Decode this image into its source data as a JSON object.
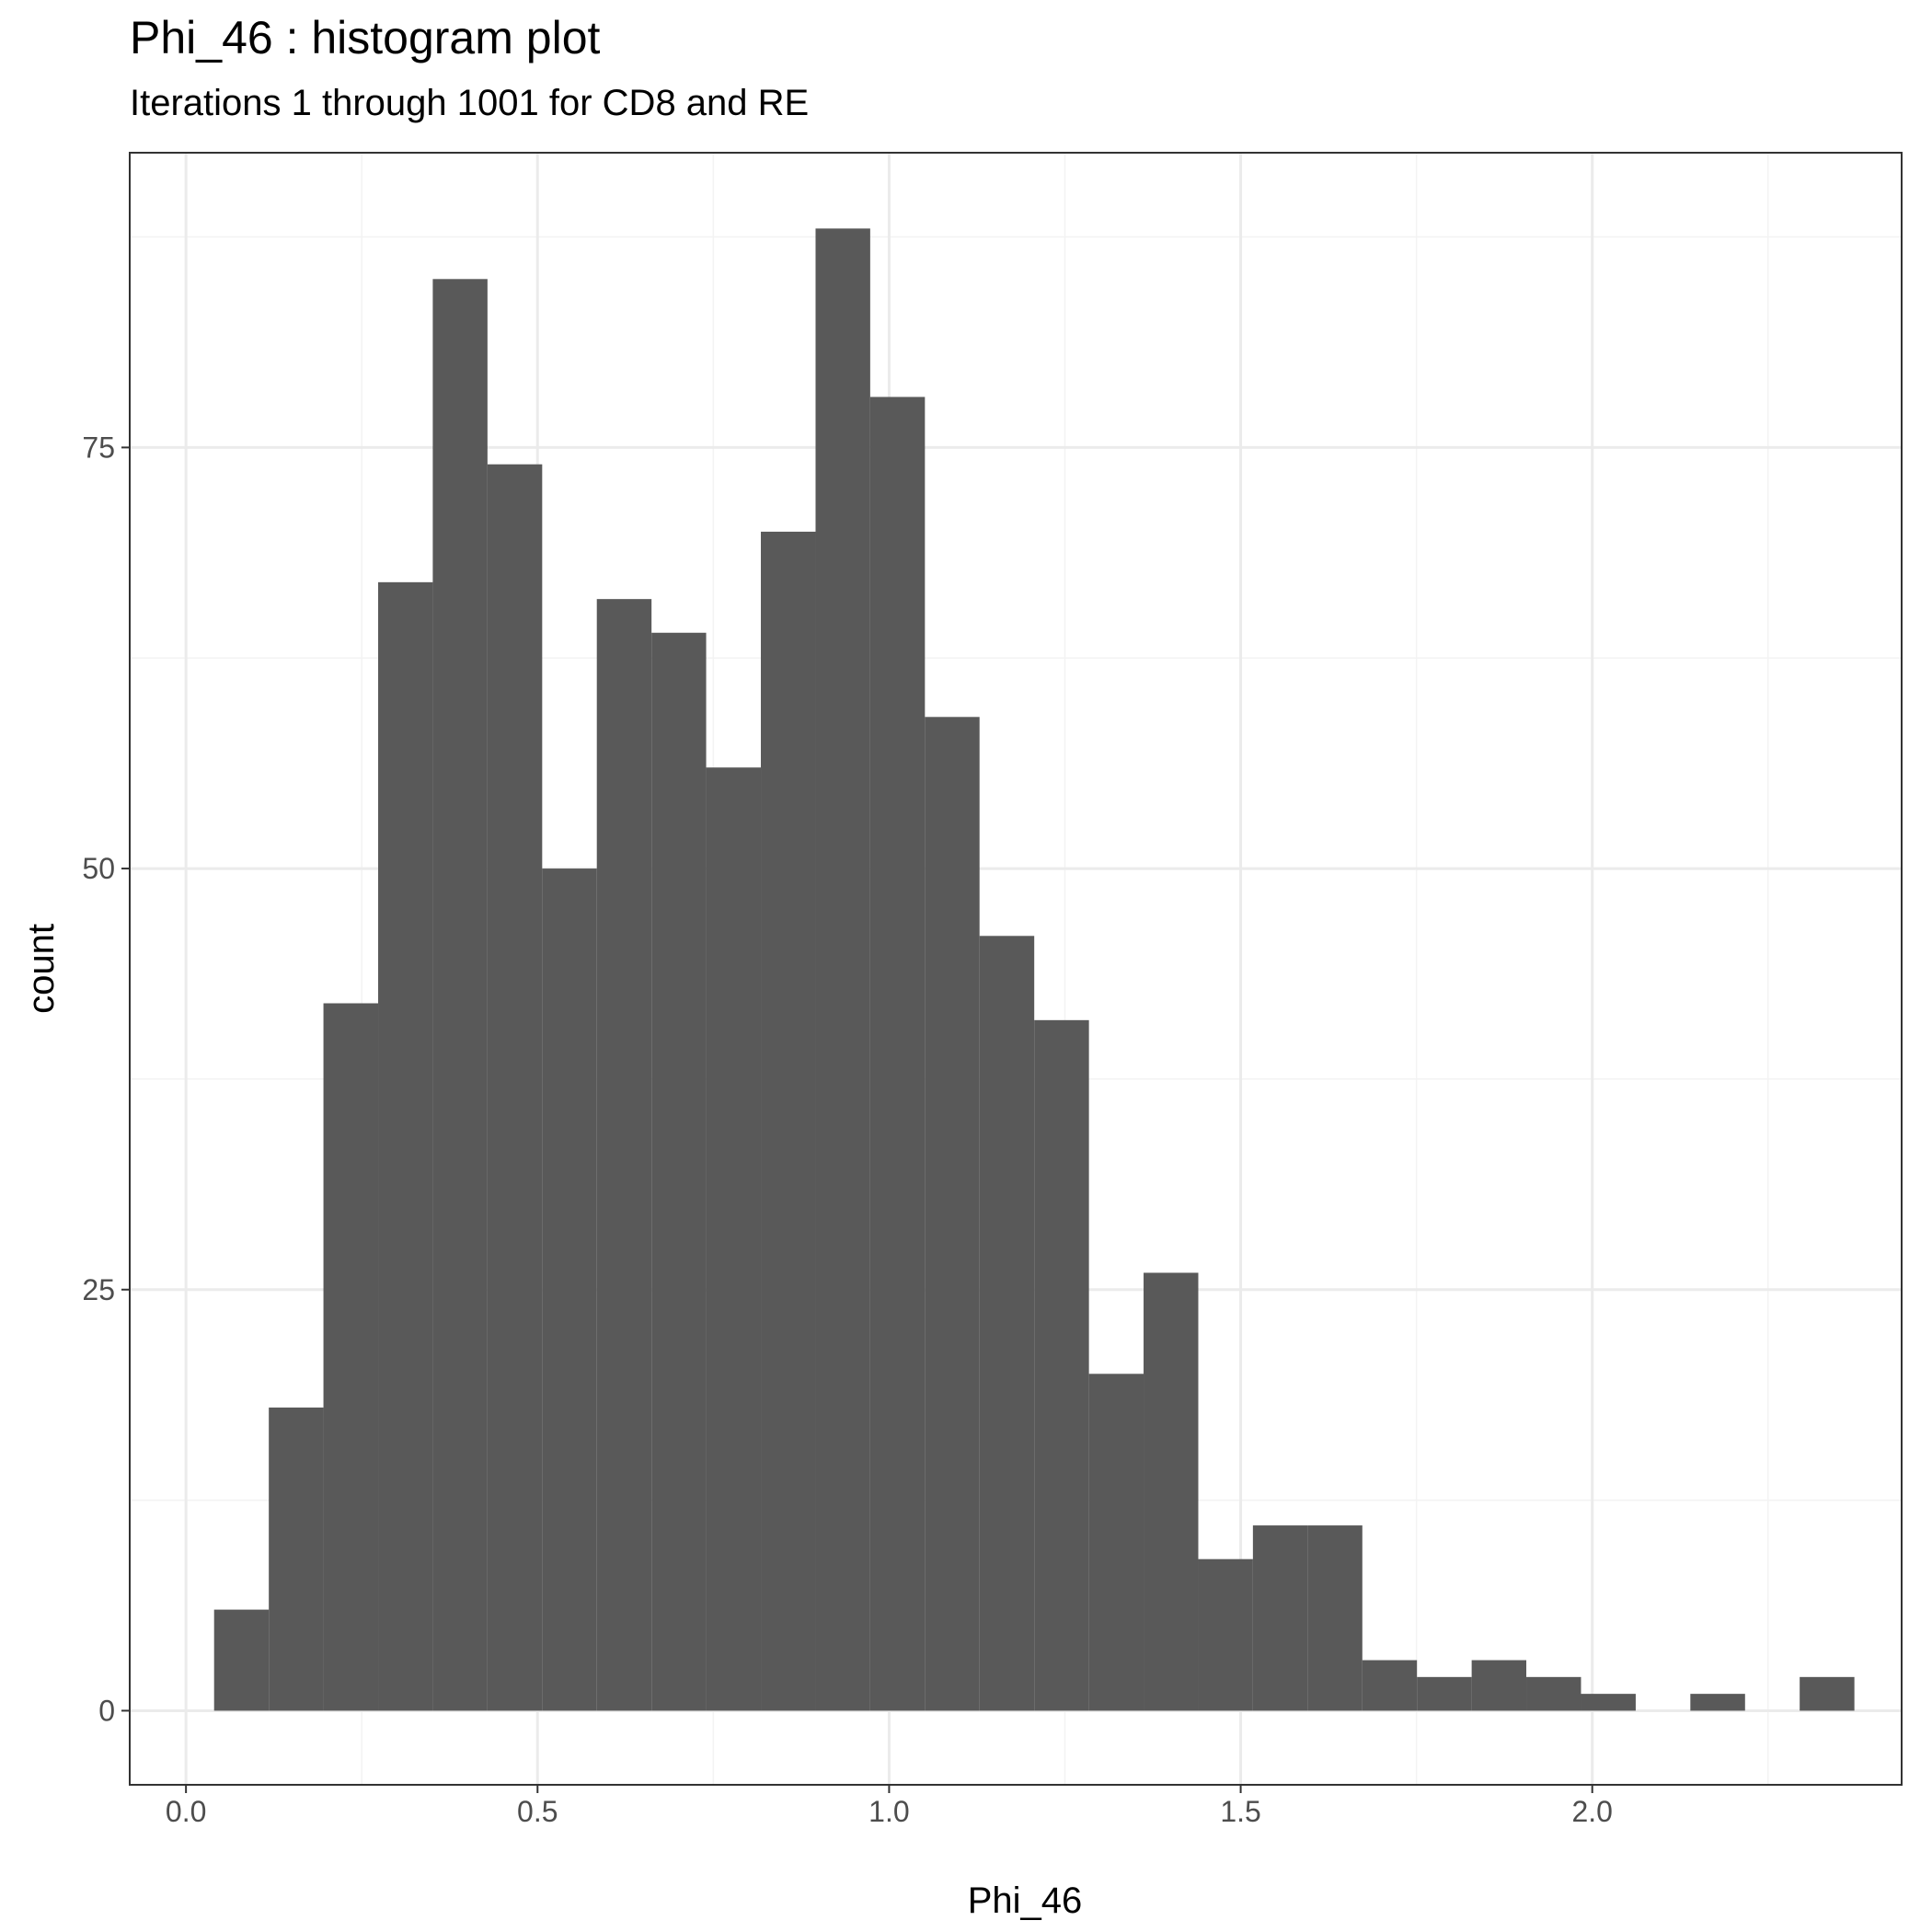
{
  "chart_data": {
    "type": "bar",
    "title": "Phi_46 : histogram plot",
    "subtitle": "Iterations 1 through 1001 for CD8 and RE",
    "xlabel": "Phi_46",
    "ylabel": "count",
    "xlim": [
      -0.08,
      2.44
    ],
    "ylim": [
      -4.4,
      92.5
    ],
    "x_ticks": [
      0.0,
      0.5,
      1.0,
      1.5,
      2.0
    ],
    "x_tick_labels": [
      "0.0",
      "0.5",
      "1.0",
      "1.5",
      "2.0"
    ],
    "y_ticks": [
      0,
      25,
      50,
      75
    ],
    "y_tick_labels": [
      "0",
      "25",
      "50",
      "75"
    ],
    "grid": true,
    "bin_edges": [
      0.04,
      0.1178,
      0.1955,
      0.2733,
      0.351,
      0.4288,
      0.5066,
      0.5843,
      0.6621,
      0.7398,
      0.8176,
      0.8954,
      0.9731,
      1.0509,
      1.1286,
      1.2064,
      1.2842,
      1.3619,
      1.4397,
      1.5174,
      1.5952,
      1.673,
      1.7507,
      1.8285,
      1.9062,
      1.984,
      2.0618,
      2.1395,
      2.2173,
      2.295,
      2.3728
    ],
    "counts": [
      6,
      18,
      42,
      67,
      85,
      74,
      50,
      66,
      64,
      56,
      70,
      88,
      78,
      59,
      46,
      41,
      20,
      26,
      9,
      11,
      11,
      3,
      2,
      3,
      2,
      1,
      0,
      1,
      0,
      2
    ],
    "colors": {
      "bar": "#595959",
      "grid_major": "#ebebeb",
      "grid_minor": "#f3f3f3",
      "panel_border": "#333333"
    }
  }
}
